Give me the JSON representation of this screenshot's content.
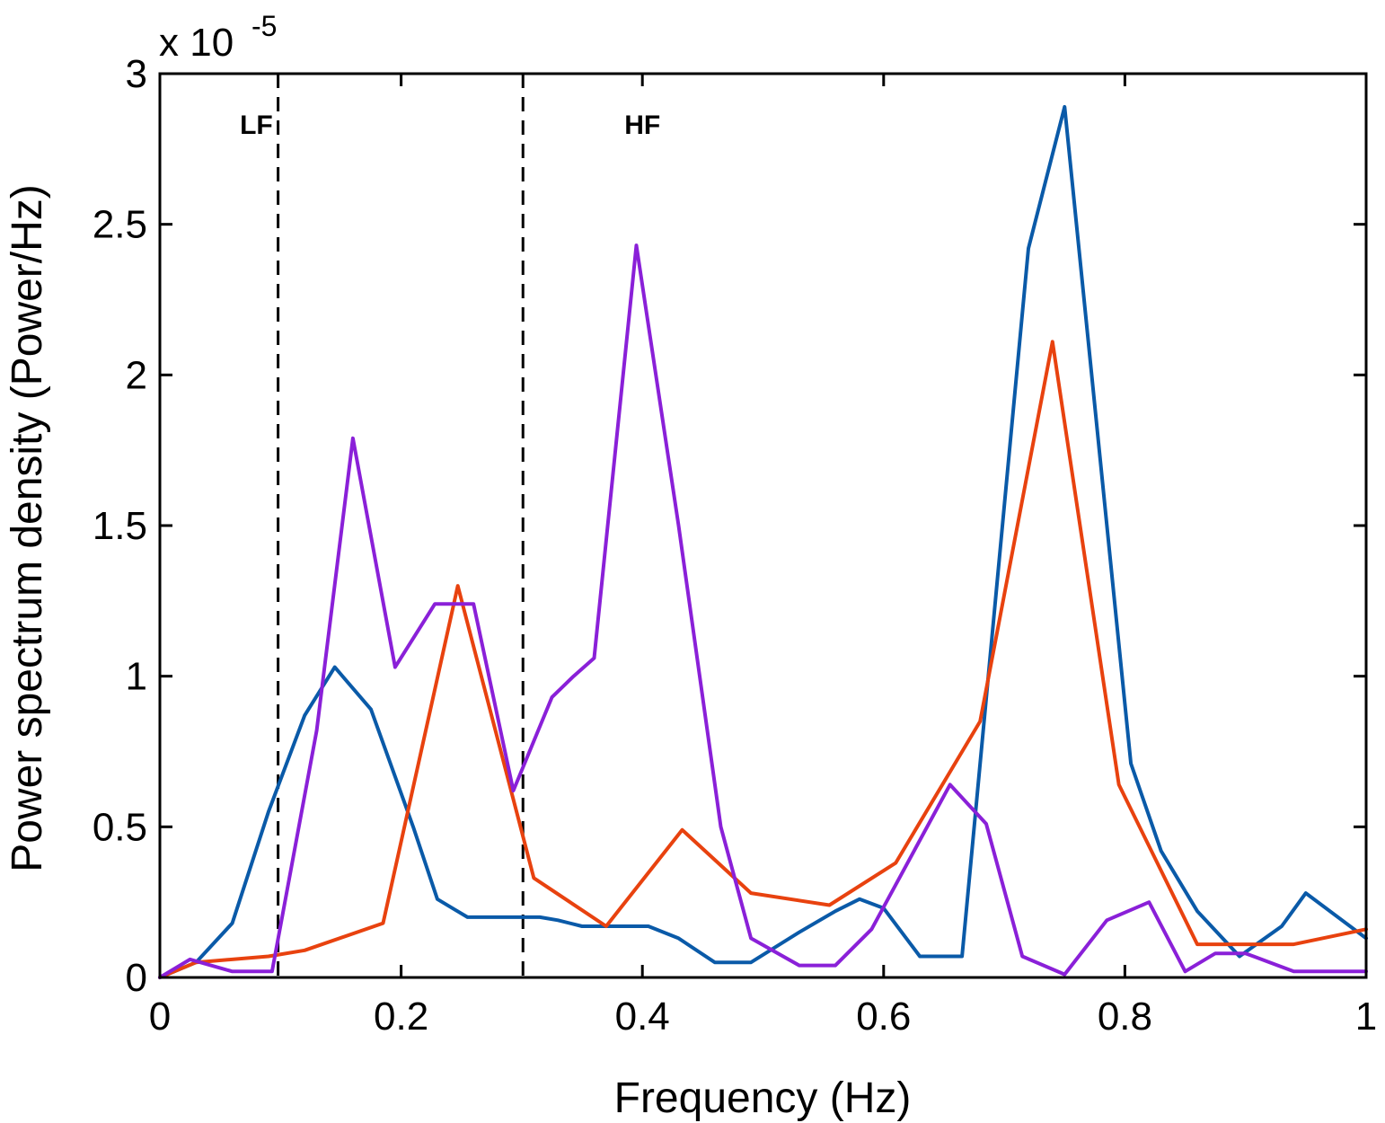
{
  "chart_data": {
    "type": "line",
    "xlabel": "Frequency (Hz)",
    "ylabel": "Power spectrum density (Power/Hz)",
    "y_multiplier_label": "x 10",
    "y_multiplier_exponent": "-5",
    "xlim": [
      0,
      1
    ],
    "ylim": [
      0,
      3
    ],
    "xticks": [
      0,
      0.2,
      0.4,
      0.6,
      0.8,
      1
    ],
    "xtick_labels": [
      "0",
      "0.2",
      "0.4",
      "0.6",
      "0.8",
      "1"
    ],
    "yticks": [
      0,
      0.5,
      1,
      1.5,
      2,
      2.5,
      3
    ],
    "ytick_labels": [
      "0",
      "0.5",
      "1",
      "1.5",
      "2",
      "2.5",
      "3"
    ],
    "grid": false,
    "legend": "none",
    "band_markers": [
      {
        "x": 0.098,
        "label": "LF",
        "label_x": 0.08,
        "label_y": 2.83
      },
      {
        "x": 0.301,
        "label": "HF",
        "label_x": 0.4,
        "label_y": 2.83
      }
    ],
    "series": [
      {
        "color": "#0a5aa8",
        "x": [
          0,
          0.03,
          0.06,
          0.09,
          0.12,
          0.145,
          0.175,
          0.21,
          0.23,
          0.255,
          0.3,
          0.315,
          0.33,
          0.35,
          0.375,
          0.405,
          0.43,
          0.46,
          0.49,
          0.53,
          0.56,
          0.58,
          0.6,
          0.63,
          0.665,
          0.72,
          0.75,
          0.805,
          0.83,
          0.86,
          0.895,
          0.93,
          0.95,
          1.0
        ],
        "y": [
          0,
          0.05,
          0.18,
          0.55,
          0.87,
          1.03,
          0.89,
          0.5,
          0.26,
          0.2,
          0.2,
          0.2,
          0.19,
          0.17,
          0.17,
          0.17,
          0.13,
          0.05,
          0.05,
          0.15,
          0.22,
          0.26,
          0.23,
          0.07,
          0.07,
          2.42,
          2.89,
          0.71,
          0.42,
          0.22,
          0.07,
          0.17,
          0.28,
          0.13
        ]
      },
      {
        "color": "#e8420f",
        "x": [
          0,
          0.03,
          0.09,
          0.12,
          0.185,
          0.247,
          0.31,
          0.37,
          0.433,
          0.49,
          0.555,
          0.61,
          0.68,
          0.74,
          0.795,
          0.86,
          0.91,
          0.94,
          1.0
        ],
        "y": [
          0,
          0.05,
          0.07,
          0.09,
          0.18,
          1.3,
          0.33,
          0.17,
          0.49,
          0.28,
          0.24,
          0.38,
          0.85,
          2.11,
          0.64,
          0.11,
          0.11,
          0.11,
          0.16
        ]
      },
      {
        "color": "#8a20d8",
        "x": [
          0,
          0.025,
          0.06,
          0.093,
          0.13,
          0.16,
          0.195,
          0.228,
          0.26,
          0.293,
          0.325,
          0.343,
          0.36,
          0.395,
          0.43,
          0.465,
          0.49,
          0.53,
          0.56,
          0.59,
          0.655,
          0.685,
          0.715,
          0.75,
          0.785,
          0.82,
          0.85,
          0.875,
          0.9,
          0.92,
          0.94,
          1.0
        ],
        "y": [
          0,
          0.06,
          0.02,
          0.02,
          0.82,
          1.79,
          1.03,
          1.24,
          1.24,
          0.62,
          0.93,
          1.0,
          1.06,
          2.43,
          1.5,
          0.5,
          0.13,
          0.04,
          0.04,
          0.16,
          0.64,
          0.51,
          0.07,
          0.01,
          0.19,
          0.25,
          0.02,
          0.08,
          0.08,
          0.05,
          0.02,
          0.02
        ]
      }
    ]
  }
}
